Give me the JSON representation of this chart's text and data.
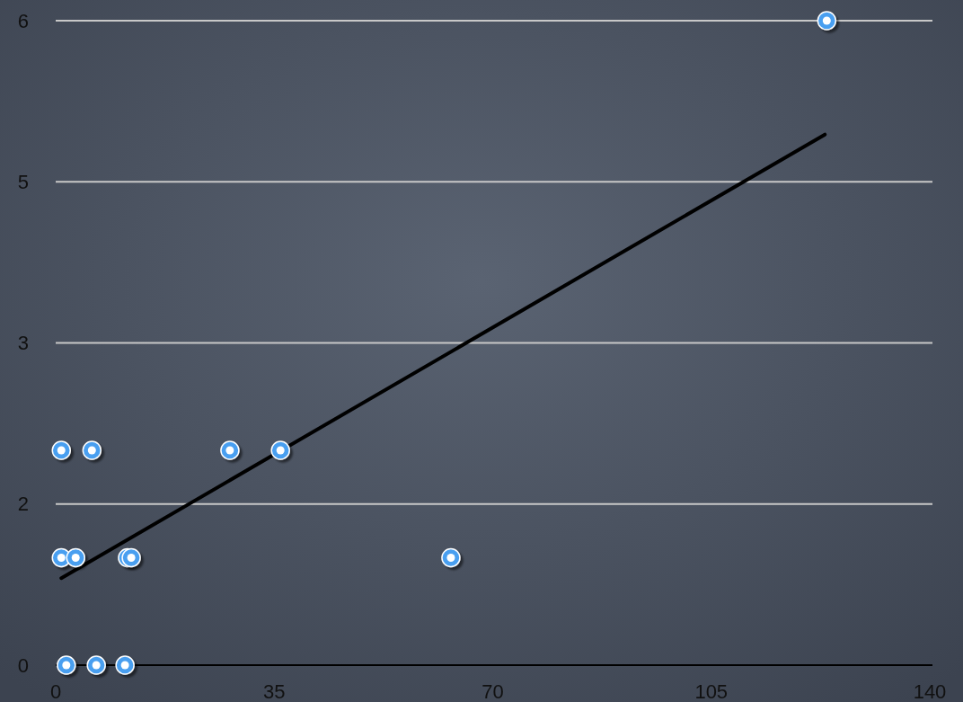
{
  "chart_data": {
    "type": "scatter",
    "xlim": [
      0,
      140
    ],
    "xticks": [
      0,
      35,
      70,
      105,
      140
    ],
    "ylim": [
      0,
      6
    ],
    "yticks": [
      0,
      {
        "value": 1.5,
        "label": "2"
      },
      3,
      {
        "value": 4.5,
        "label": "5"
      },
      6
    ],
    "grid": "y",
    "series": [
      {
        "marker": "circle",
        "color": "#4a9ff0",
        "x": [
          0.9,
          5.8,
          27.9,
          36,
          0.9,
          3.2,
          11.5,
          12.1,
          63.3,
          1.7,
          6.5,
          11.1,
          123.5
        ],
        "values": [
          2,
          2,
          2,
          2,
          1,
          1,
          1,
          1,
          1,
          0,
          0,
          0,
          6
        ]
      },
      {
        "type": "line",
        "marker": "none",
        "color": "#000000",
        "x": [
          0.9,
          123.2
        ],
        "values": [
          0.81,
          4.94
        ]
      }
    ]
  }
}
